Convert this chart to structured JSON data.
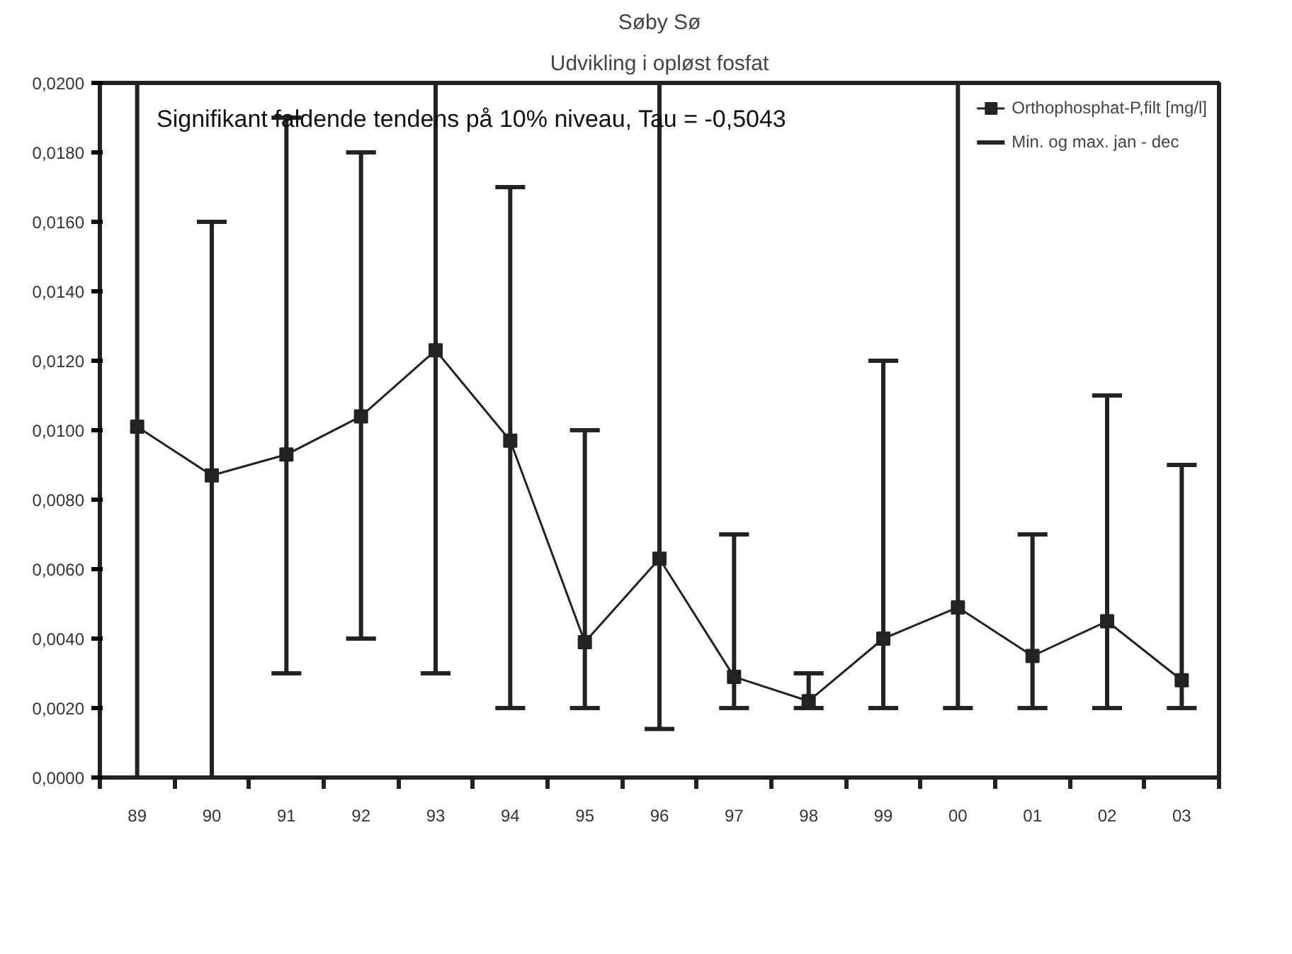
{
  "chart_data": {
    "type": "line",
    "title": "Søby Sø",
    "subtitle": "Udvikling i opløst fosfat",
    "annotations": [
      "Signifikant faldende tendens på 10% niveau, Tau = -0,5043",
      "Min. og max. jan - dec"
    ],
    "categories": [
      "89",
      "90",
      "91",
      "92",
      "93",
      "94",
      "95",
      "96",
      "97",
      "98",
      "99",
      "00",
      "01",
      "02",
      "03"
    ],
    "series": [
      {
        "name": "Orthophosphat-P,filt [mg/l]",
        "color": "#222222",
        "values": [
          0.0101,
          0.0087,
          0.0093,
          0.0104,
          0.0123,
          0.0097,
          0.0039,
          0.0063,
          0.0029,
          0.0022,
          0.004,
          0.0049,
          0.0035,
          0.0045,
          0.0028
        ],
        "errors": [
          [
            0.0,
            0.02
          ],
          [
            0.0,
            0.016
          ],
          [
            0.003,
            0.019
          ],
          [
            0.004,
            0.018
          ],
          [
            0.003,
            0.02
          ],
          [
            0.002,
            0.017
          ],
          [
            0.002,
            0.01
          ],
          [
            0.0014,
            0.02
          ],
          [
            0.002,
            0.007
          ],
          [
            0.002,
            0.003
          ],
          [
            0.002,
            0.012
          ],
          [
            0.002,
            0.02
          ],
          [
            0.002,
            0.007
          ],
          [
            0.002,
            0.011
          ],
          [
            0.002,
            0.009
          ]
        ]
      }
    ],
    "ylim": [
      0,
      0.02
    ],
    "yticks": [
      {
        "value": 0,
        "label": "0,0000"
      },
      {
        "value": 0.002,
        "label": "0,0020"
      },
      {
        "value": 0.004,
        "label": "0,0040"
      },
      {
        "value": 0.006,
        "label": "0,0060"
      },
      {
        "value": 0.008,
        "label": "0,0080"
      },
      {
        "value": 0.01,
        "label": "0,0100"
      },
      {
        "value": 0.012,
        "label": "0,0120"
      },
      {
        "value": 0.014,
        "label": "0,0140"
      },
      {
        "value": 0.016,
        "label": "0,0160"
      },
      {
        "value": 0.018,
        "label": "0,0180"
      },
      {
        "value": 0.02,
        "label": "0,0200"
      }
    ],
    "grid": false,
    "legend": "top right",
    "marker": "square",
    "line_style": "solid"
  }
}
